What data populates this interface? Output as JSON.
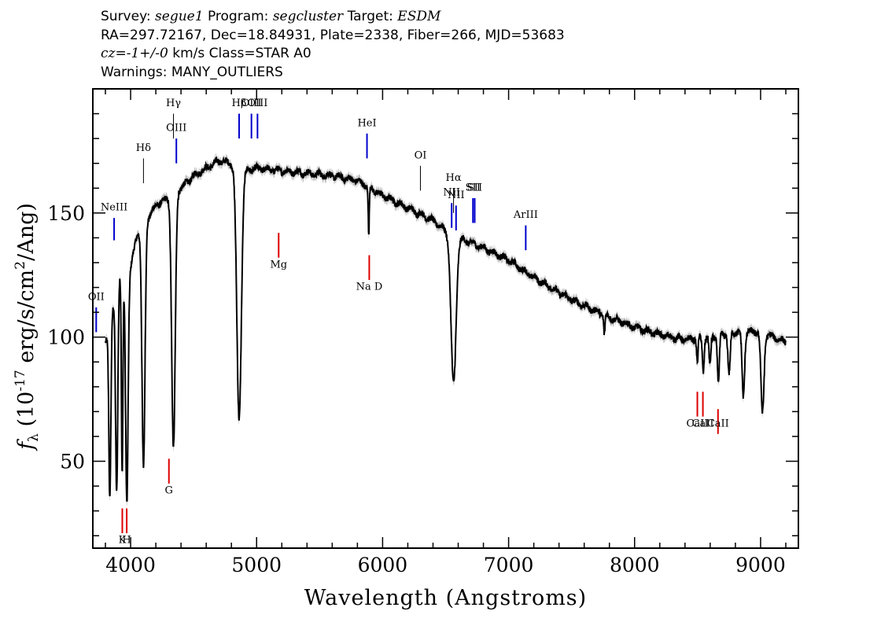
{
  "header": {
    "line1": {
      "survey_label": "Survey:",
      "survey": "segue1",
      "program_label": "Program:",
      "program": "segcluster",
      "target_label": "Target:",
      "target": "ESDM"
    },
    "line2": "RA=297.72167, Dec=18.84931, Plate=2338, Fiber=266, MJD=53683",
    "line3": {
      "cz": "cz=-1+/-0",
      "rest": "km/s Class=STAR A0"
    },
    "line4": "Warnings: MANY_OUTLIERS"
  },
  "chart_data": {
    "type": "line",
    "xlabel": "Wavelength (Angstroms)",
    "ylabel": "f_λ (10^-17 erg/s/cm^2/Ang)",
    "xlim": [
      3700,
      9300
    ],
    "ylim": [
      15,
      200
    ],
    "xticks": [
      4000,
      5000,
      6000,
      7000,
      8000,
      9000
    ],
    "yticks": [
      50,
      100,
      150
    ],
    "colors": {
      "spectrum": "#000000",
      "error_band": "#bdbdbd",
      "emission": "#0000cc",
      "absorption": "#dd0000",
      "sky": "#000000"
    },
    "continuum": [
      [
        3800,
        98
      ],
      [
        3850,
        108
      ],
      [
        3900,
        125
      ],
      [
        3950,
        126
      ],
      [
        4000,
        128
      ],
      [
        4050,
        141
      ],
      [
        4100,
        145
      ],
      [
        4200,
        153
      ],
      [
        4300,
        156
      ],
      [
        4400,
        160
      ],
      [
        4500,
        165
      ],
      [
        4600,
        168
      ],
      [
        4700,
        171
      ],
      [
        4800,
        170
      ],
      [
        4900,
        167
      ],
      [
        5000,
        168
      ],
      [
        5200,
        167
      ],
      [
        5400,
        166
      ],
      [
        5600,
        165
      ],
      [
        5800,
        163
      ],
      [
        6000,
        157
      ],
      [
        6200,
        152
      ],
      [
        6400,
        147
      ],
      [
        6500,
        143
      ],
      [
        6600,
        140
      ],
      [
        6800,
        136
      ],
      [
        7000,
        131
      ],
      [
        7200,
        124
      ],
      [
        7500,
        115
      ],
      [
        7800,
        108
      ],
      [
        8000,
        104
      ],
      [
        8200,
        101
      ],
      [
        8400,
        99
      ],
      [
        8600,
        100
      ],
      [
        8800,
        102
      ],
      [
        9000,
        102
      ],
      [
        9100,
        100
      ],
      [
        9200,
        98
      ]
    ],
    "absorption_features": [
      {
        "center": 3835,
        "depth_to": 35,
        "width": 8
      },
      {
        "center": 3889,
        "depth_to": 38,
        "width": 9
      },
      {
        "center": 3933,
        "depth_to": 45,
        "width": 6
      },
      {
        "center": 3970,
        "depth_to": 34,
        "width": 10
      },
      {
        "center": 4102,
        "depth_to": 47,
        "width": 12
      },
      {
        "center": 4340,
        "depth_to": 55,
        "width": 14
      },
      {
        "center": 4861,
        "depth_to": 67,
        "width": 18
      },
      {
        "center": 5890,
        "depth_to": 140,
        "width": 4
      },
      {
        "center": 6563,
        "depth_to": 81,
        "width": 20
      },
      {
        "center": 7760,
        "depth_to": 101,
        "width": 5
      },
      {
        "center": 8498,
        "depth_to": 90,
        "width": 6
      },
      {
        "center": 8545,
        "depth_to": 86,
        "width": 7
      },
      {
        "center": 8598,
        "depth_to": 88,
        "width": 7
      },
      {
        "center": 8665,
        "depth_to": 82,
        "width": 8
      },
      {
        "center": 8750,
        "depth_to": 85,
        "width": 9
      },
      {
        "center": 8863,
        "depth_to": 76,
        "width": 10
      },
      {
        "center": 9015,
        "depth_to": 69,
        "width": 12
      }
    ],
    "emission_lines": [
      {
        "label": "OII",
        "x": 3727,
        "y_low": 102,
        "y_high": 112,
        "label_y": 115
      },
      {
        "label": "NeIII",
        "x": 3869,
        "y_low": 139,
        "y_high": 148,
        "label_y": 151
      },
      {
        "label": "OIII",
        "x": 4363,
        "y_low": 170,
        "y_high": 180,
        "label_y": 183
      },
      {
        "label": "Hβ",
        "x": 4861,
        "y_low": 180,
        "y_high": 190,
        "label_y": 193
      },
      {
        "label": "OIII",
        "x": 4959,
        "y_low": 180,
        "y_high": 190,
        "label_y": 193
      },
      {
        "label": "OIII",
        "x": 5007,
        "y_low": 180,
        "y_high": 190,
        "label_y": 193
      },
      {
        "label": "HeI",
        "x": 5876,
        "y_low": 172,
        "y_high": 182,
        "label_y": 185
      },
      {
        "label": "NII",
        "x": 6548,
        "y_low": 144,
        "y_high": 154,
        "label_y": 157
      },
      {
        "label": "NII",
        "x": 6583,
        "y_low": 143,
        "y_high": 153,
        "label_y": 156
      },
      {
        "label": "SII",
        "x": 6717,
        "y_low": 146,
        "y_high": 156,
        "label_y": 159
      },
      {
        "label": "SII",
        "x": 6731,
        "y_low": 146,
        "y_high": 156,
        "label_y": 159
      },
      {
        "label": "ArIII",
        "x": 7136,
        "y_low": 135,
        "y_high": 145,
        "label_y": 148
      }
    ],
    "black_lines": [
      {
        "label": "Hδ",
        "x": 4102,
        "y_low": 162,
        "y_high": 172,
        "label_y": 175
      },
      {
        "label": "Hγ",
        "x": 4340,
        "y_low": 180,
        "y_high": 190,
        "label_y": 193
      },
      {
        "label": "OI",
        "x": 6300,
        "y_low": 159,
        "y_high": 169,
        "label_y": 172
      },
      {
        "label": "Hα",
        "x": 6563,
        "y_low": 150,
        "y_high": 160,
        "label_y": 163
      }
    ],
    "absorption_lines": [
      {
        "label": "K",
        "x": 3934,
        "y_low": 21,
        "y_high": 31,
        "label_y": 17
      },
      {
        "label": "H",
        "x": 3969,
        "y_low": 21,
        "y_high": 31,
        "label_y": 17
      },
      {
        "label": "G",
        "x": 4304,
        "y_low": 41,
        "y_high": 51,
        "label_y": 37
      },
      {
        "label": "Mg",
        "x": 5175,
        "y_low": 132,
        "y_high": 142,
        "label_y": 128
      },
      {
        "label": "Na D",
        "x": 5894,
        "y_low": 123,
        "y_high": 133,
        "label_y": 119
      },
      {
        "label": "CaII",
        "x": 8498,
        "y_low": 68,
        "y_high": 78,
        "label_y": 64
      },
      {
        "label": "CaII",
        "x": 8542,
        "y_low": 68,
        "y_high": 78,
        "label_y": 64
      },
      {
        "label": "CaII",
        "x": 8662,
        "y_low": 61,
        "y_high": 71,
        "label_y": 64
      }
    ],
    "range": [
      3800,
      9200
    ]
  }
}
